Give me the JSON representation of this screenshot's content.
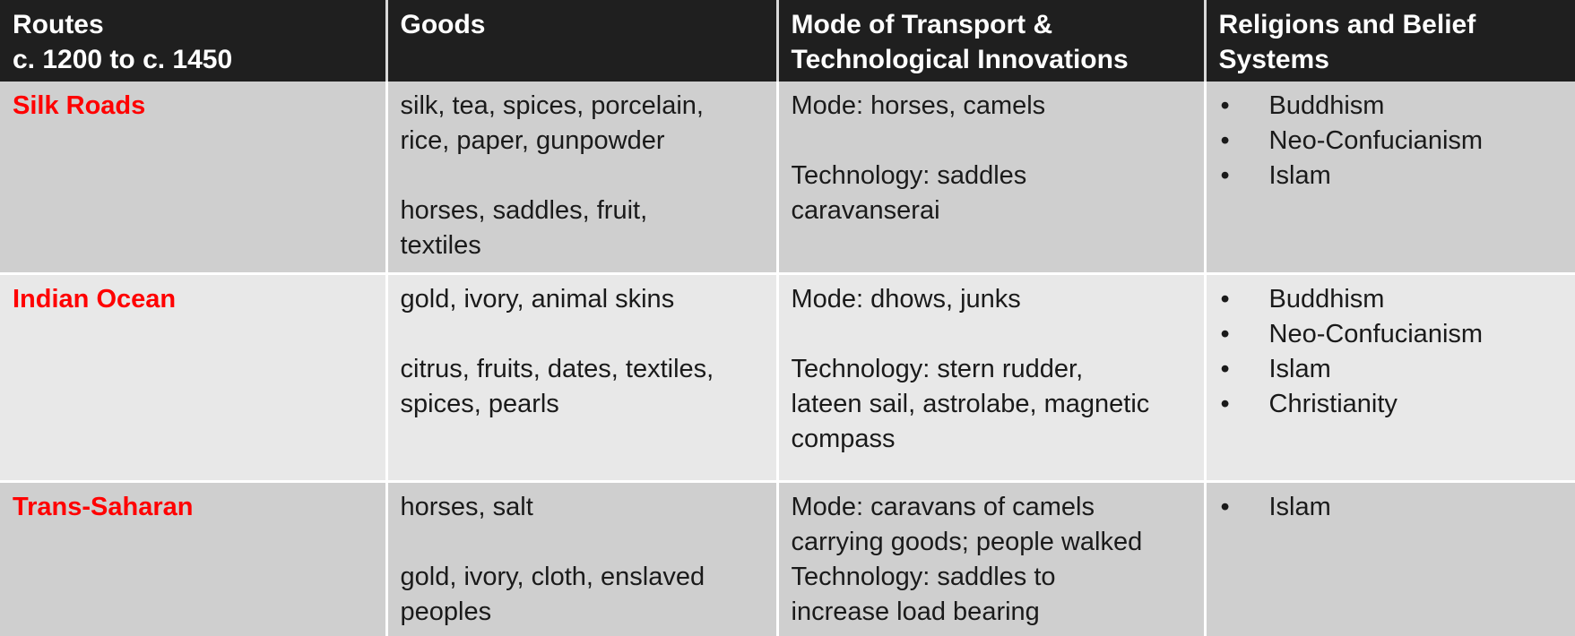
{
  "table": {
    "headers": [
      [
        "Routes",
        "c. 1200 to c. 1450"
      ],
      [
        "Goods"
      ],
      [
        "Mode of Transport &",
        "Technological Innovations"
      ],
      [
        "Religions and Belief",
        "Systems"
      ]
    ],
    "rows": [
      {
        "route": "Silk Roads",
        "goods": [
          "silk, tea, spices, porcelain,",
          "rice, paper, gunpowder",
          "horses, saddles, fruit,",
          "textiles"
        ],
        "transport": [
          "Mode: horses, camels",
          "Technology: saddles",
          "caravanserai"
        ],
        "beliefs": [
          "Buddhism",
          "Neo-Confucianism",
          "Islam"
        ]
      },
      {
        "route": "Indian Ocean",
        "goods": [
          "gold, ivory, animal skins",
          "citrus, fruits, dates, textiles,",
          "spices, pearls"
        ],
        "transport": [
          "Mode: dhows, junks",
          "Technology: stern rudder,",
          "lateen sail, astrolabe, magnetic",
          "compass"
        ],
        "beliefs": [
          "Buddhism",
          "Neo-Confucianism",
          "Islam",
          "Christianity"
        ]
      },
      {
        "route": "Trans-Saharan",
        "goods": [
          "horses, salt",
          "gold, ivory, cloth, enslaved",
          "peoples"
        ],
        "transport": [
          "Mode: caravans of camels",
          "carrying goods; people walked",
          "Technology: saddles to",
          "increase load bearing"
        ],
        "beliefs": [
          "Islam"
        ]
      }
    ],
    "bullet_char": "•",
    "colors": {
      "header_bg": "#1f1f1f",
      "header_text": "#ffffff",
      "route_name": "#ff0000",
      "row_dark": "#cfcfcf",
      "row_light": "#e8e8e8"
    }
  }
}
